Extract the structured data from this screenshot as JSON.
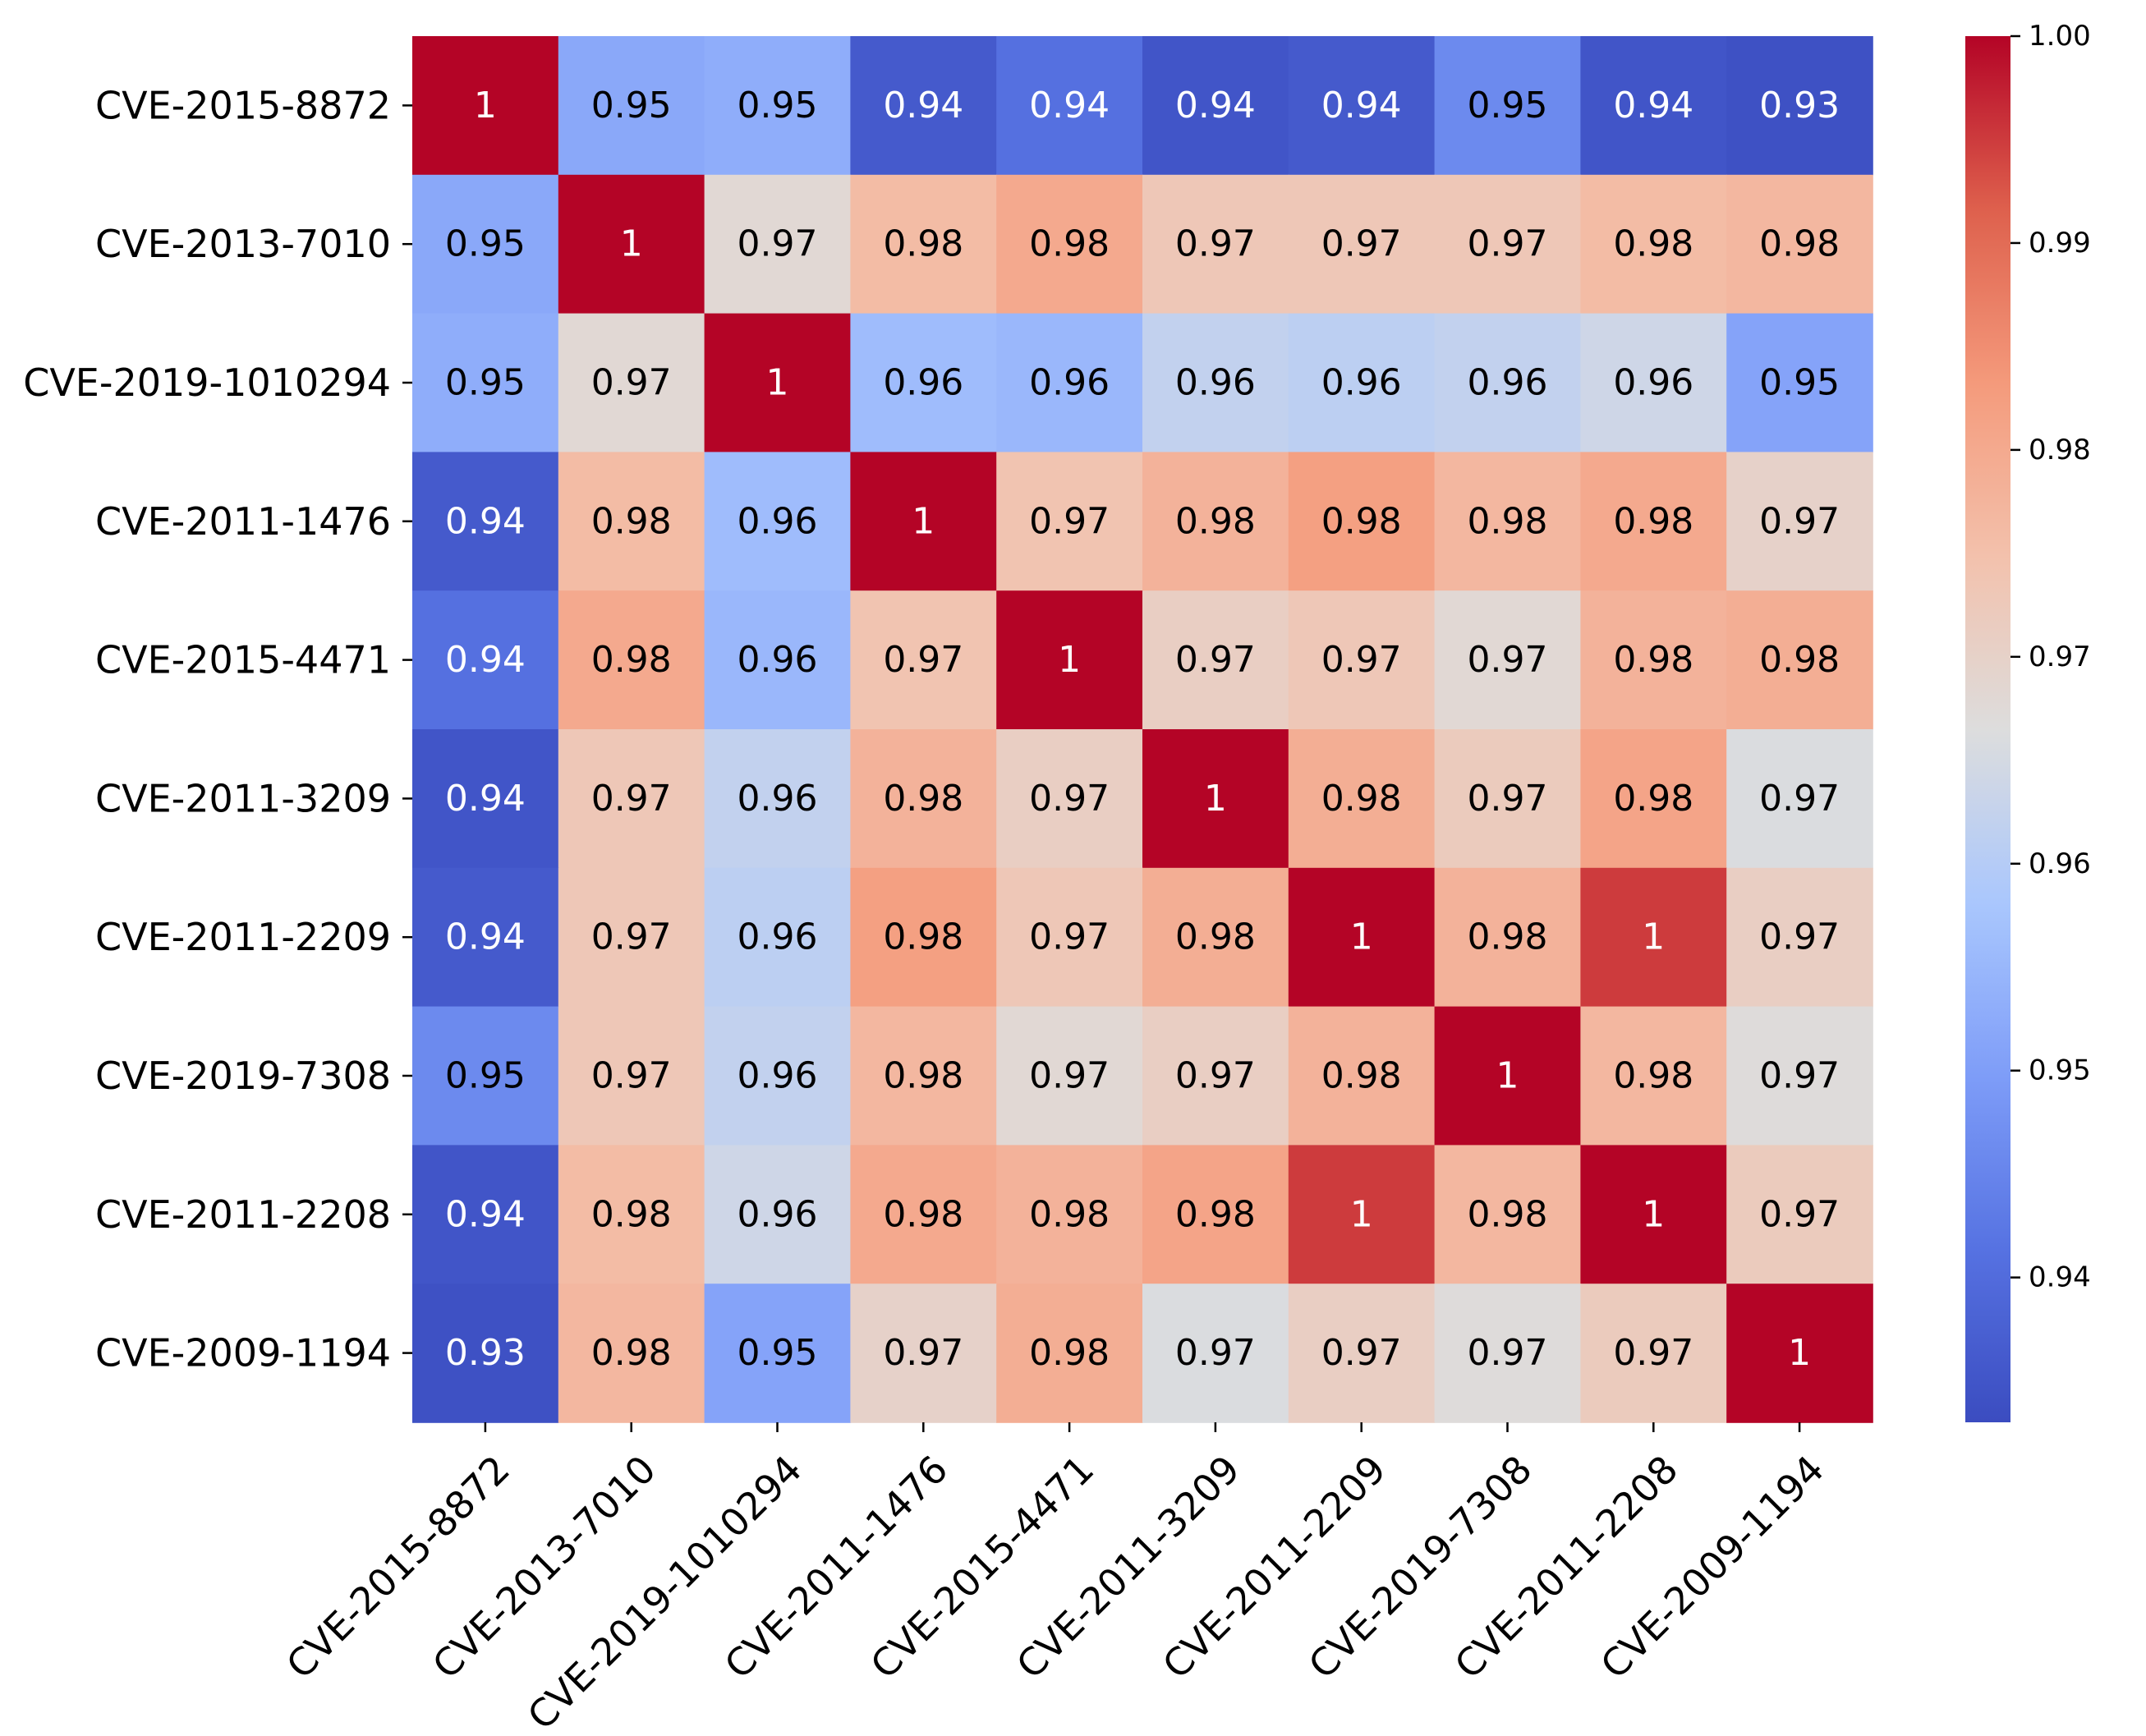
{
  "chart_data": {
    "type": "heatmap",
    "title": "",
    "xlabel": "",
    "ylabel": "",
    "categories": [
      "CVE-2015-8872",
      "CVE-2013-7010",
      "CVE-2019-1010294",
      "CVE-2011-1476",
      "CVE-2015-4471",
      "CVE-2011-3209",
      "CVE-2011-2209",
      "CVE-2019-7308",
      "CVE-2011-2208",
      "CVE-2009-1194"
    ],
    "values": [
      [
        1.0,
        0.952,
        0.953,
        0.936,
        0.941,
        0.935,
        0.936,
        0.946,
        0.935,
        0.934
      ],
      [
        0.952,
        1.0,
        0.968,
        0.976,
        0.98,
        0.973,
        0.973,
        0.973,
        0.976,
        0.977
      ],
      [
        0.953,
        0.968,
        1.0,
        0.956,
        0.955,
        0.962,
        0.961,
        0.962,
        0.964,
        0.951
      ],
      [
        0.936,
        0.976,
        0.956,
        1.0,
        0.974,
        0.978,
        0.982,
        0.977,
        0.98,
        0.97
      ],
      [
        0.941,
        0.98,
        0.955,
        0.974,
        1.0,
        0.971,
        0.973,
        0.968,
        0.978,
        0.979
      ],
      [
        0.935,
        0.973,
        0.962,
        0.978,
        0.971,
        1.0,
        0.979,
        0.972,
        0.981,
        0.966
      ],
      [
        0.936,
        0.973,
        0.961,
        0.982,
        0.973,
        0.979,
        1.0,
        0.978,
        0.995,
        0.971
      ],
      [
        0.946,
        0.973,
        0.962,
        0.977,
        0.968,
        0.971,
        0.978,
        1.0,
        0.977,
        0.967
      ],
      [
        0.935,
        0.976,
        0.964,
        0.98,
        0.978,
        0.981,
        0.995,
        0.977,
        1.0,
        0.972
      ],
      [
        0.934,
        0.977,
        0.951,
        0.97,
        0.979,
        0.966,
        0.971,
        0.967,
        0.972,
        1.0
      ]
    ],
    "annotations": [
      [
        "1",
        "0.95",
        "0.95",
        "0.94",
        "0.94",
        "0.94",
        "0.94",
        "0.95",
        "0.94",
        "0.93"
      ],
      [
        "0.95",
        "1",
        "0.97",
        "0.98",
        "0.98",
        "0.97",
        "0.97",
        "0.97",
        "0.98",
        "0.98"
      ],
      [
        "0.95",
        "0.97",
        "1",
        "0.96",
        "0.96",
        "0.96",
        "0.96",
        "0.96",
        "0.96",
        "0.95"
      ],
      [
        "0.94",
        "0.98",
        "0.96",
        "1",
        "0.97",
        "0.98",
        "0.98",
        "0.98",
        "0.98",
        "0.97"
      ],
      [
        "0.94",
        "0.98",
        "0.96",
        "0.97",
        "1",
        "0.97",
        "0.97",
        "0.97",
        "0.98",
        "0.98"
      ],
      [
        "0.94",
        "0.97",
        "0.96",
        "0.98",
        "0.97",
        "1",
        "0.98",
        "0.97",
        "0.98",
        "0.97"
      ],
      [
        "0.94",
        "0.97",
        "0.96",
        "0.98",
        "0.97",
        "0.98",
        "1",
        "0.98",
        "1",
        "0.97"
      ],
      [
        "0.95",
        "0.97",
        "0.96",
        "0.98",
        "0.97",
        "0.97",
        "0.98",
        "1",
        "0.98",
        "0.97"
      ],
      [
        "0.94",
        "0.98",
        "0.96",
        "0.98",
        "0.98",
        "0.98",
        "1",
        "0.98",
        "1",
        "0.97"
      ],
      [
        "0.93",
        "0.98",
        "0.95",
        "0.97",
        "0.98",
        "0.97",
        "0.97",
        "0.97",
        "0.97",
        "1"
      ]
    ],
    "colormap": "coolwarm",
    "vmin": 0.933,
    "vmax": 1.0,
    "colorbar_ticks": [
      "0.94",
      "0.95",
      "0.96",
      "0.97",
      "0.98",
      "0.99",
      "1.00"
    ],
    "colorbar_tick_values": [
      0.94,
      0.95,
      0.96,
      0.97,
      0.98,
      0.99,
      1.0
    ],
    "grid": false,
    "legend": "colorbar-right"
  }
}
